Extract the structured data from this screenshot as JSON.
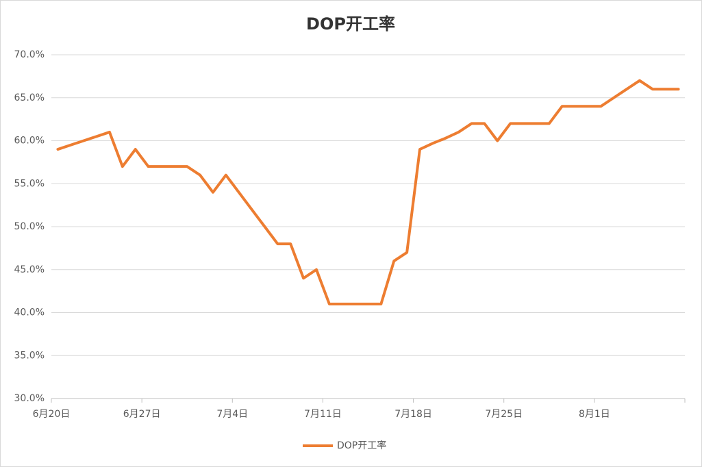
{
  "chart_data": {
    "type": "line",
    "title": "DOP开工率",
    "categories": [
      "6月20日",
      null,
      null,
      null,
      null,
      null,
      null,
      "6月27日",
      null,
      null,
      null,
      null,
      null,
      null,
      "7月4日",
      null,
      null,
      null,
      null,
      null,
      null,
      "7月11日",
      null,
      null,
      null,
      null,
      null,
      null,
      "7月18日",
      null,
      null,
      null,
      null,
      null,
      null,
      "7月25日",
      null,
      null,
      null,
      null,
      null,
      null,
      "8月1日",
      null,
      null,
      null,
      null,
      null,
      null
    ],
    "series": [
      {
        "name": "DOP开工率",
        "color": "#ed7d31",
        "values": [
          59,
          59.5,
          60,
          60.5,
          61,
          57,
          59,
          57,
          57,
          57,
          57,
          56,
          54,
          56,
          54,
          52,
          50,
          48,
          48,
          44,
          45,
          41,
          41,
          41,
          41,
          41,
          46,
          47,
          59,
          59.7,
          60.3,
          61,
          62,
          62,
          60,
          62,
          62,
          62,
          62,
          64,
          64,
          64,
          64,
          65,
          66,
          67,
          66,
          66,
          66
        ]
      }
    ],
    "ylim": [
      30,
      70
    ],
    "yticks": [
      {
        "value": 30,
        "label": "30.0%"
      },
      {
        "value": 35,
        "label": "35.0%"
      },
      {
        "value": 40,
        "label": "40.0%"
      },
      {
        "value": 45,
        "label": "45.0%"
      },
      {
        "value": 50,
        "label": "50.0%"
      },
      {
        "value": 55,
        "label": "55.0%"
      },
      {
        "value": 60,
        "label": "60.0%"
      },
      {
        "value": 65,
        "label": "65.0%"
      },
      {
        "value": 70,
        "label": "70.0%"
      }
    ],
    "grid": true,
    "legend": "bottom"
  }
}
